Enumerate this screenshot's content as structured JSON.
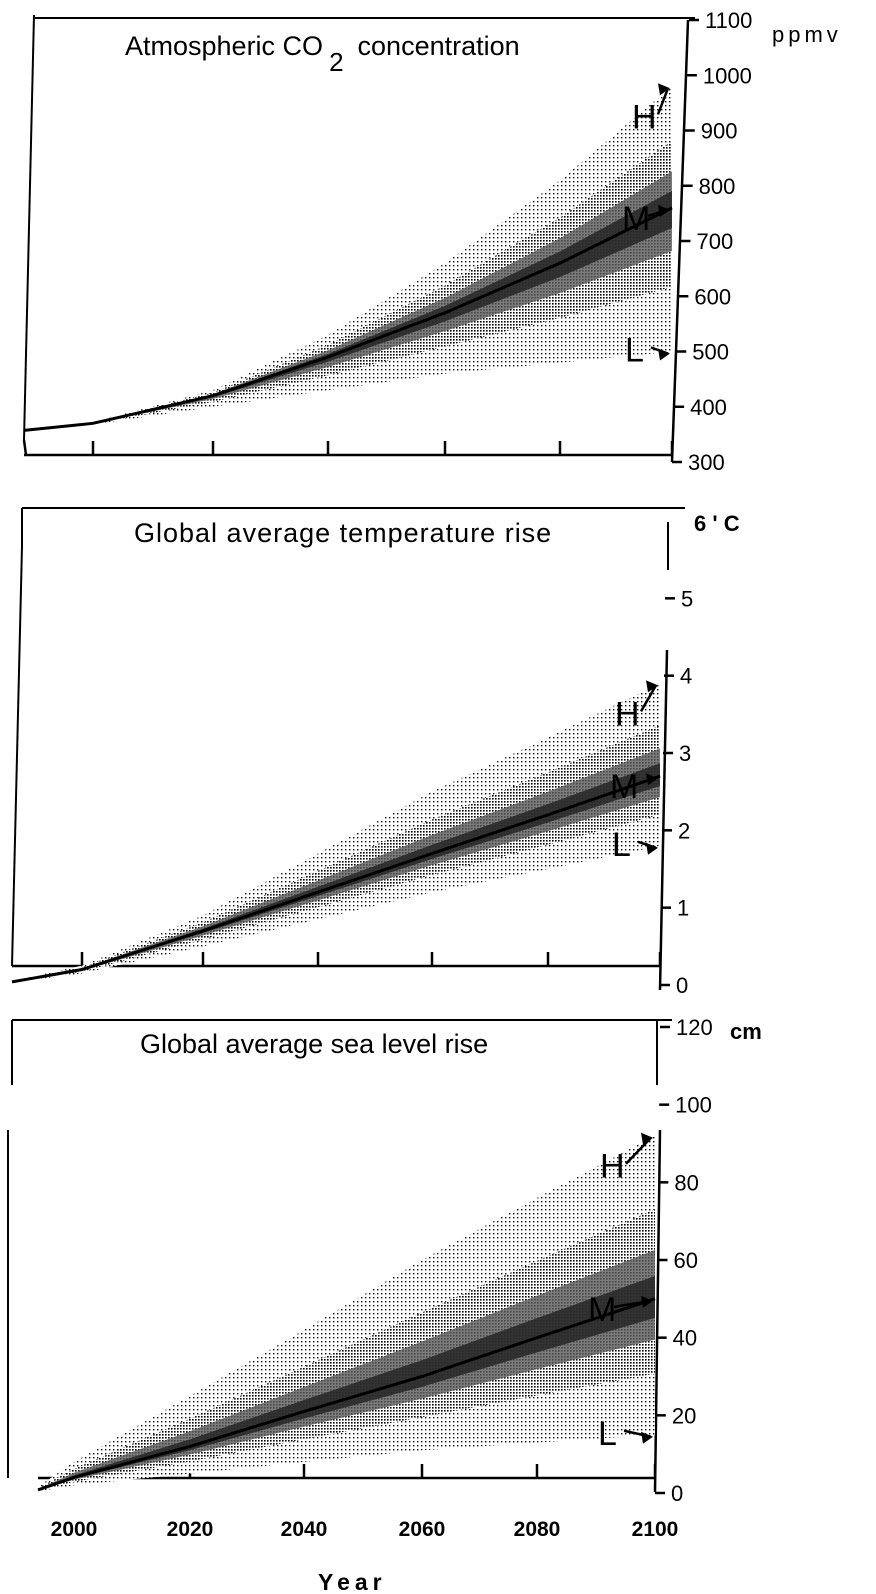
{
  "chart_data": [
    {
      "type": "area",
      "title": "Atmospheric CO 2 concentration",
      "title_main": "Atmospheric CO",
      "title_sub": "2",
      "title_rest": "concentration",
      "unit": "ppmv",
      "ylim": [
        300,
        1100
      ],
      "yticks": [
        300,
        400,
        500,
        600,
        700,
        800,
        900,
        1000,
        1100
      ],
      "x": [
        1990,
        2000,
        2020,
        2040,
        2060,
        2080,
        2100
      ],
      "series": [
        {
          "name": "H",
          "values": [
            354,
            372,
            430,
            530,
            660,
            810,
            980
          ]
        },
        {
          "name": "M",
          "values": [
            354,
            370,
            420,
            490,
            570,
            660,
            760
          ]
        },
        {
          "name": "L",
          "values": [
            354,
            368,
            400,
            430,
            460,
            480,
            500
          ]
        }
      ],
      "grid": false
    },
    {
      "type": "area",
      "title": "Global average temperature rise",
      "unit": "6 ' C",
      "ylim": [
        0,
        6
      ],
      "yticks": [
        0,
        1,
        2,
        3,
        4,
        5
      ],
      "x": [
        1990,
        2000,
        2020,
        2040,
        2060,
        2080,
        2100
      ],
      "series": [
        {
          "name": "H",
          "values": [
            0,
            0.25,
            0.9,
            1.7,
            2.5,
            3.2,
            3.9
          ]
        },
        {
          "name": "M",
          "values": [
            0,
            0.2,
            0.7,
            1.2,
            1.7,
            2.2,
            2.7
          ]
        },
        {
          "name": "L",
          "values": [
            0,
            0.15,
            0.5,
            0.85,
            1.2,
            1.5,
            1.8
          ]
        }
      ],
      "grid": false
    },
    {
      "type": "area",
      "title": "Global average sea level rise",
      "unit": "cm",
      "ylim": [
        0,
        120
      ],
      "yticks": [
        0,
        20,
        40,
        60,
        80,
        100,
        120
      ],
      "x": [
        1990,
        2000,
        2020,
        2040,
        2060,
        2080,
        2100
      ],
      "series": [
        {
          "name": "H",
          "values": [
            0,
            8,
            25,
            42,
            60,
            76,
            92
          ]
        },
        {
          "name": "M",
          "values": [
            0,
            4,
            12,
            21,
            30,
            40,
            50
          ]
        },
        {
          "name": "L",
          "values": [
            0,
            2,
            5,
            8,
            11,
            13,
            15
          ]
        }
      ],
      "grid": false
    }
  ],
  "x_axis": {
    "label": "Year",
    "ticks": [
      "2000",
      "2020",
      "2040",
      "2060",
      "2080",
      "2100"
    ]
  },
  "colors": {
    "band_dark": "#000000",
    "band_light": "#ffffff",
    "ink": "#000000"
  }
}
